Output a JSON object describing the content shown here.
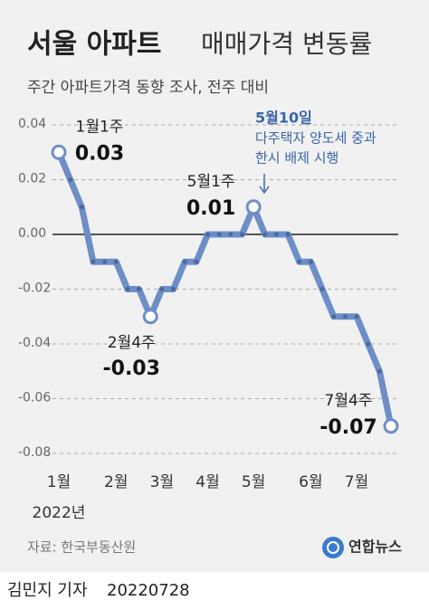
{
  "chart_data": {
    "type": "line",
    "title": [
      "서울 아파트",
      "매매가격 변동률"
    ],
    "subtitle": "주간 아파트가격 동향 조사, 전주 대비",
    "categories": [
      "1월",
      null,
      null,
      null,
      null,
      "2월",
      null,
      null,
      null,
      "3월",
      null,
      null,
      null,
      "4월",
      null,
      null,
      null,
      "5월",
      null,
      null,
      null,
      null,
      "6월",
      null,
      null,
      null,
      "7월",
      null,
      null,
      null
    ],
    "x_axis_label": "2022년",
    "values": [
      0.03,
      0.02,
      0.01,
      -0.01,
      -0.01,
      -0.01,
      -0.02,
      -0.02,
      -0.03,
      -0.02,
      -0.02,
      -0.01,
      -0.01,
      0.0,
      0.0,
      0.0,
      0.0,
      0.01,
      0.0,
      0.0,
      0.0,
      -0.01,
      -0.01,
      -0.02,
      -0.03,
      -0.03,
      -0.03,
      -0.04,
      -0.05,
      -0.07
    ],
    "value_labels": [
      "0.03",
      null,
      null,
      null,
      null,
      null,
      null,
      null,
      "-0.03",
      null,
      null,
      null,
      null,
      null,
      null,
      null,
      null,
      "0.01",
      null,
      null,
      null,
      null,
      null,
      null,
      null,
      null,
      null,
      null,
      null,
      "-0.07"
    ],
    "point_labels": [
      "1월1주",
      null,
      null,
      null,
      null,
      null,
      null,
      null,
      "2월4주",
      null,
      null,
      null,
      null,
      null,
      null,
      null,
      null,
      "5월1주",
      null,
      null,
      null,
      null,
      null,
      null,
      null,
      null,
      null,
      null,
      null,
      "7월4주"
    ],
    "color": "#6d8ec6",
    "ylim": [
      -0.08,
      0.04
    ],
    "yticks": [
      0.04,
      0.02,
      {
        "value": 0,
        "label": "0.00"
      },
      -0.02,
      -0.04,
      -0.06,
      -0.08
    ],
    "grid": true,
    "annotation": {
      "title": "5월10일",
      "lines": [
        "다주택자 양도세 중과",
        "한시 배제 시행"
      ]
    },
    "source": "자료: 한국부동산원",
    "logo": "연합뉴스"
  },
  "footer": {
    "byline": "김민지 기자",
    "date": "20220728"
  }
}
